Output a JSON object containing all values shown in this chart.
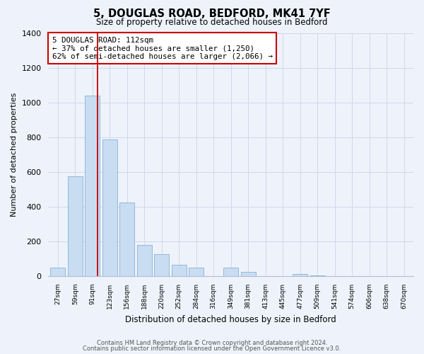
{
  "title1": "5, DOUGLAS ROAD, BEDFORD, MK41 7YF",
  "title2": "Size of property relative to detached houses in Bedford",
  "xlabel": "Distribution of detached houses by size in Bedford",
  "ylabel": "Number of detached properties",
  "categories": [
    "27sqm",
    "59sqm",
    "91sqm",
    "123sqm",
    "156sqm",
    "188sqm",
    "220sqm",
    "252sqm",
    "284sqm",
    "316sqm",
    "349sqm",
    "381sqm",
    "413sqm",
    "445sqm",
    "477sqm",
    "509sqm",
    "541sqm",
    "574sqm",
    "606sqm",
    "638sqm",
    "670sqm"
  ],
  "values": [
    50,
    575,
    1040,
    785,
    425,
    178,
    125,
    65,
    50,
    0,
    48,
    25,
    0,
    0,
    12,
    5,
    0,
    0,
    0,
    0,
    0
  ],
  "bar_color": "#c8ddf2",
  "bar_edge_color": "#8ab0d4",
  "vline_x_index": 2,
  "vline_x_offset": 0.3,
  "vline_color": "#cc0000",
  "annotation_title": "5 DOUGLAS ROAD: 112sqm",
  "annotation_line1": "← 37% of detached houses are smaller (1,250)",
  "annotation_line2": "62% of semi-detached houses are larger (2,066) →",
  "annotation_box_color": "#ffffff",
  "annotation_box_edge": "#cc0000",
  "ylim": [
    0,
    1400
  ],
  "yticks": [
    0,
    200,
    400,
    600,
    800,
    1000,
    1200,
    1400
  ],
  "footer1": "Contains HM Land Registry data © Crown copyright and database right 2024.",
  "footer2": "Contains public sector information licensed under the Open Government Licence v3.0.",
  "bg_color": "#eef3fb",
  "grid_color": "#d0d8e8",
  "spine_color": "#b0bcd0"
}
